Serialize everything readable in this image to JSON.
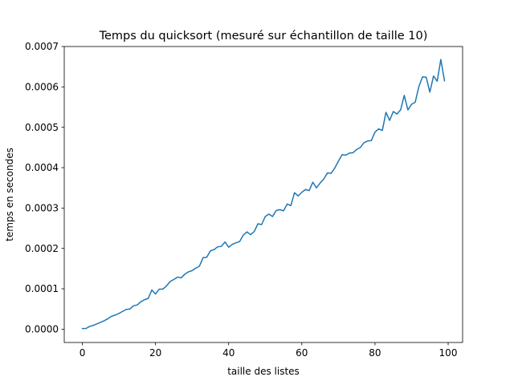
{
  "chart_data": {
    "type": "line",
    "title": "Temps du quicksort (mesuré sur échantillon de taille 10)",
    "xlabel": "taille des listes",
    "ylabel": "temps en secondes",
    "xlim": [
      -4.95,
      103.95
    ],
    "ylim": [
      -3.3e-05,
      0.0007
    ],
    "xticks": [
      0,
      20,
      40,
      60,
      80,
      100
    ],
    "xtick_labels": [
      "0",
      "20",
      "40",
      "60",
      "80",
      "100"
    ],
    "yticks": [
      0,
      0.0001,
      0.0002,
      0.0003,
      0.0004,
      0.0005,
      0.0006,
      0.0007
    ],
    "ytick_labels": [
      "0.0000",
      "0.0001",
      "0.0002",
      "0.0003",
      "0.0004",
      "0.0005",
      "0.0006",
      "0.0007"
    ],
    "grid": false,
    "series": [
      {
        "color": "#1f77b4",
        "x_start": 0,
        "x_step": 1,
        "values": [
          1.5e-06,
          1.8e-06,
          6.8e-06,
          9.5e-06,
          1.3e-05,
          1.7e-05,
          2.1e-05,
          2.6e-05,
          3.2e-05,
          3.5e-05,
          3.9e-05,
          4.4e-05,
          4.9e-05,
          5e-05,
          5.8e-05,
          6e-05,
          6.8e-05,
          7.3e-05,
          7.6e-05,
          9.7e-05,
          8.7e-05,
          9.9e-05,
          9.9e-05,
          0.000107,
          0.000118,
          0.000123,
          0.000129,
          0.000127,
          0.000136,
          0.000142,
          0.000145,
          0.000151,
          0.000156,
          0.000177,
          0.000178,
          0.000194,
          0.000197,
          0.000204,
          0.000205,
          0.000216,
          0.000203,
          0.00021,
          0.000214,
          0.000217,
          0.000233,
          0.000241,
          0.000234,
          0.000242,
          0.000261,
          0.000259,
          0.000279,
          0.000285,
          0.000279,
          0.000294,
          0.000296,
          0.000293,
          0.00031,
          0.000306,
          0.000338,
          0.00033,
          0.000339,
          0.000346,
          0.000343,
          0.000364,
          0.00035,
          0.000362,
          0.000372,
          0.000387,
          0.000386,
          0.000399,
          0.000416,
          0.000432,
          0.000431,
          0.000436,
          0.000437,
          0.000445,
          0.00045,
          0.000462,
          0.000466,
          0.000467,
          0.000488,
          0.000496,
          0.000492,
          0.000537,
          0.000517,
          0.000539,
          0.000533,
          0.000543,
          0.000579,
          0.000543,
          0.000557,
          0.000562,
          0.000601,
          0.000625,
          0.000624,
          0.000587,
          0.000627,
          0.000614,
          0.000668,
          0.000615
        ]
      }
    ]
  }
}
